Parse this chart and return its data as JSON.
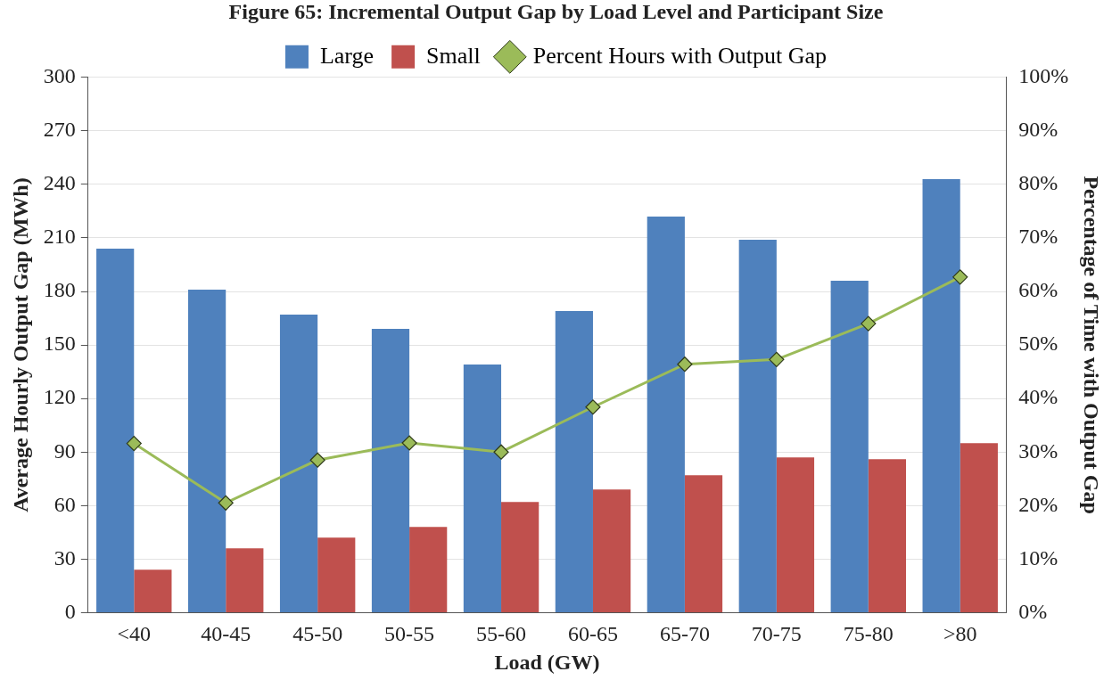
{
  "chart_data": {
    "type": "bar",
    "title": "Figure 65: Incremental Output Gap by Load Level and Participant Size",
    "xlabel": "Load (GW)",
    "ylabel": "Average Hourly Output Gap (MWh)",
    "y2label": "Percentage of Time with Output Gap",
    "categories": [
      "<40",
      "40-45",
      "45-50",
      "50-55",
      "55-60",
      "60-65",
      "65-70",
      "70-75",
      "75-80",
      ">80"
    ],
    "series": [
      {
        "name": "Large",
        "color": "#4f81bd",
        "values": [
          204,
          181,
          167,
          159,
          139,
          169,
          222,
          209,
          186,
          243
        ]
      },
      {
        "name": "Small",
        "color": "#c0504d",
        "values": [
          24,
          36,
          42,
          48,
          62,
          69,
          77,
          87,
          86,
          95
        ]
      },
      {
        "name": "Percent Hours with Output Gap",
        "type": "line",
        "axis": "y2",
        "color": "#9bbb59",
        "marker": "diamond",
        "values": [
          31.6,
          20.5,
          28.5,
          31.7,
          30,
          38.4,
          46.4,
          47.3,
          54,
          62.7
        ]
      }
    ],
    "ylim": [
      0,
      300
    ],
    "yticks": [
      0,
      30,
      60,
      90,
      120,
      150,
      180,
      210,
      240,
      270,
      300
    ],
    "y2lim": [
      0,
      100
    ],
    "y2ticks": [
      {
        "value": 0,
        "label": "0%"
      },
      {
        "value": 10,
        "label": "10%"
      },
      {
        "value": 20,
        "label": "20%"
      },
      {
        "value": 30,
        "label": "30%"
      },
      {
        "value": 40,
        "label": "40%"
      },
      {
        "value": 50,
        "label": "50%"
      },
      {
        "value": 60,
        "label": "60%"
      },
      {
        "value": 70,
        "label": "70%"
      },
      {
        "value": 80,
        "label": "80%"
      },
      {
        "value": 90,
        "label": "90%"
      },
      {
        "value": 100,
        "label": "100%"
      }
    ],
    "grid": "y",
    "legend": "top"
  }
}
